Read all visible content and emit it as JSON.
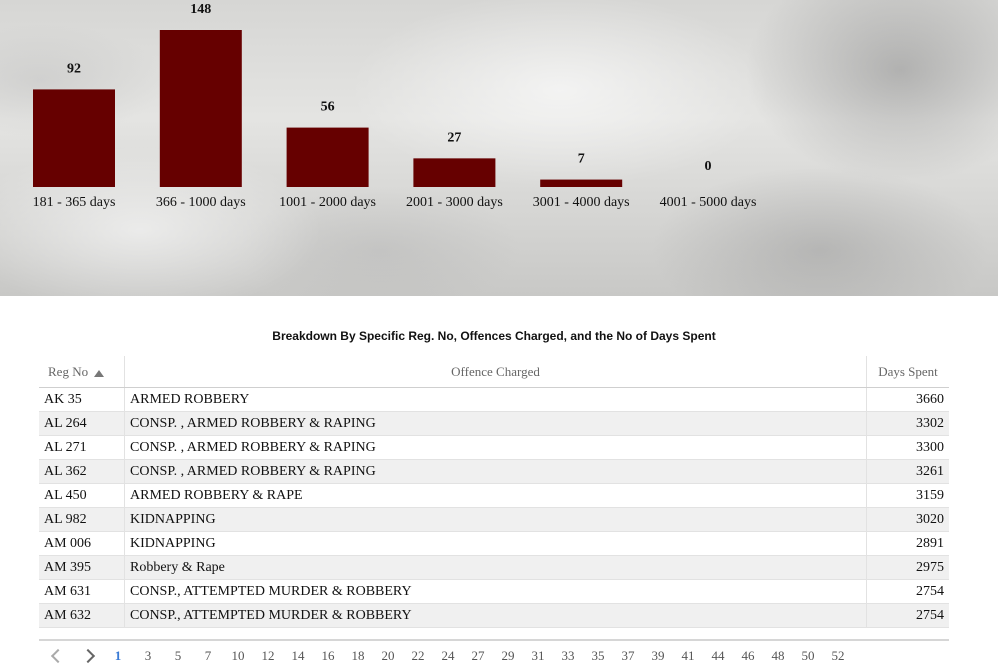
{
  "chart_data": {
    "type": "bar",
    "categories": [
      "181 - 365 days",
      "366 - 1000 days",
      "1001 - 2000 days",
      "2001 - 3000 days",
      "3001 - 4000 days",
      "4001 - 5000 days"
    ],
    "values": [
      92,
      148,
      56,
      27,
      7,
      0
    ],
    "data_labels": [
      "92",
      "148",
      "56",
      "27",
      "7",
      "0"
    ],
    "bar_color": "#660000",
    "ylim": [
      0,
      148
    ],
    "grid": false,
    "legend": "none"
  },
  "table": {
    "title": "Breakdown By Specific Reg. No, Offences Charged, and the No of Days Spent",
    "columns": {
      "reg": "Reg No",
      "offence": "Offence Charged",
      "days": "Days Spent"
    },
    "sort": "ascending",
    "rows": [
      {
        "reg": "AK 35",
        "offence": "ARMED ROBBERY",
        "days": "3660"
      },
      {
        "reg": "AL 264",
        "offence": "CONSP. , ARMED ROBBERY & RAPING",
        "days": "3302"
      },
      {
        "reg": "AL 271",
        "offence": "CONSP. , ARMED ROBBERY & RAPING",
        "days": "3300"
      },
      {
        "reg": "AL 362",
        "offence": "CONSP. , ARMED ROBBERY & RAPING",
        "days": "3261"
      },
      {
        "reg": "AL 450",
        "offence": "ARMED ROBBERY & RAPE",
        "days": "3159"
      },
      {
        "reg": "AL 982",
        "offence": "KIDNAPPING",
        "days": "3020"
      },
      {
        "reg": "AM 006",
        "offence": "KIDNAPPING",
        "days": "2891"
      },
      {
        "reg": "AM 395",
        "offence": "Robbery & Rape",
        "days": "2975"
      },
      {
        "reg": "AM 631",
        "offence": "CONSP., ATTEMPTED MURDER & ROBBERY",
        "days": "2754"
      },
      {
        "reg": "AM 632",
        "offence": "CONSP., ATTEMPTED MURDER & ROBBERY",
        "days": "2754"
      }
    ]
  },
  "pager": {
    "prev_icon": "chevron-left-icon",
    "next_icon": "chevron-right-icon",
    "current": "1",
    "pages": [
      "1",
      "3",
      "5",
      "7",
      "10",
      "12",
      "14",
      "16",
      "18",
      "20",
      "22",
      "24",
      "27",
      "29",
      "31",
      "33",
      "35",
      "37",
      "39",
      "41",
      "44",
      "46",
      "48",
      "50",
      "52"
    ]
  }
}
